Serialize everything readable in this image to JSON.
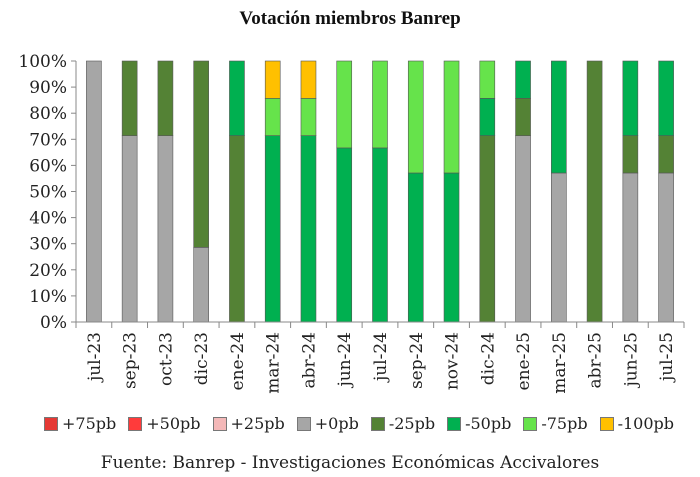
{
  "colors": {
    "+75pb": "#e53935",
    "+50pb": "#ff3b3b",
    "+25pb": "#f4b8b8",
    "+0pb": "#a6a6a6",
    "-25pb": "#548235",
    "-50pb": "#00b050",
    "-75pb": "#66e34b",
    "-100pb": "#ffc000"
  },
  "chart_data": {
    "type": "bar",
    "stacked": true,
    "title": "Votación miembros Banrep",
    "xlabel": "",
    "ylabel": "",
    "ylim": [
      0,
      100
    ],
    "y_ticks": [
      "0%",
      "10%",
      "20%",
      "30%",
      "40%",
      "50%",
      "60%",
      "70%",
      "80%",
      "90%",
      "100%"
    ],
    "categories": [
      "jul-23",
      "sep-23",
      "oct-23",
      "dic-23",
      "ene-24",
      "mar-24",
      "abr-24",
      "jun-24",
      "jul-24",
      "sep-24",
      "nov-24",
      "dic-24",
      "ene-25",
      "mar-25",
      "abr-25",
      "jun-25",
      "jul-25"
    ],
    "series": [
      {
        "name": "+75pb",
        "values": [
          0,
          0,
          0,
          0,
          0,
          0,
          0,
          0,
          0,
          0,
          0,
          0,
          0,
          0,
          0,
          0,
          0
        ]
      },
      {
        "name": "+50pb",
        "values": [
          0,
          0,
          0,
          0,
          0,
          0,
          0,
          0,
          0,
          0,
          0,
          0,
          0,
          0,
          0,
          0,
          0
        ]
      },
      {
        "name": "+25pb",
        "values": [
          0,
          0,
          0,
          0,
          0,
          0,
          0,
          0,
          0,
          0,
          0,
          0,
          0,
          0,
          0,
          0,
          0
        ]
      },
      {
        "name": "+0pb",
        "values": [
          100,
          71.4,
          71.4,
          28.6,
          0,
          0,
          0,
          0,
          0,
          0,
          0,
          0,
          71.4,
          57.1,
          0,
          57.1,
          57.1
        ]
      },
      {
        "name": "-25pb",
        "values": [
          0,
          28.6,
          28.6,
          71.4,
          71.4,
          0,
          0,
          0,
          0,
          0,
          0,
          71.4,
          14.3,
          0,
          100,
          14.3,
          14.3
        ]
      },
      {
        "name": "-50pb",
        "values": [
          0,
          0,
          0,
          0,
          28.6,
          71.4,
          71.4,
          66.7,
          66.7,
          57.1,
          57.1,
          14.3,
          14.3,
          42.9,
          0,
          28.6,
          28.6
        ]
      },
      {
        "name": "-75pb",
        "values": [
          0,
          0,
          0,
          0,
          0,
          14.3,
          14.3,
          33.3,
          33.3,
          42.9,
          42.9,
          14.3,
          0,
          0,
          0,
          0,
          0
        ]
      },
      {
        "name": "-100pb",
        "values": [
          0,
          0,
          0,
          0,
          0,
          14.3,
          14.3,
          0,
          0,
          0,
          0,
          0,
          0,
          0,
          0,
          0,
          0
        ]
      }
    ],
    "legend_position": "bottom",
    "grid": false
  },
  "source_text": "Fuente: Banrep - Investigaciones Económicas Accivalores"
}
